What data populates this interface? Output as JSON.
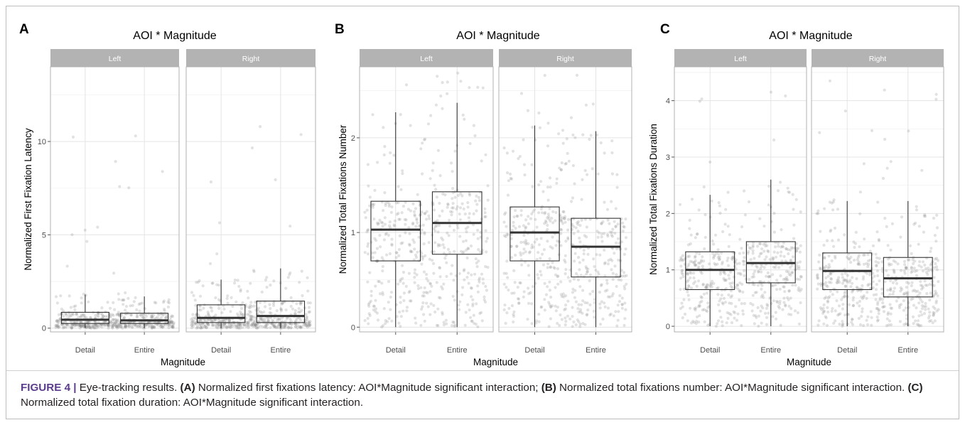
{
  "chart_data": [
    {
      "type": "box",
      "panel_letter": "A",
      "title": "AOI * Magnitude",
      "xlabel": "Magnitude",
      "ylabel": "Normalized First Fixation Latency",
      "ylim": [
        -0.2,
        14
      ],
      "yticks": [
        0,
        5,
        10
      ],
      "facets": [
        "Left",
        "Right"
      ],
      "categories": [
        "Detail",
        "Entire"
      ],
      "jitter_max": 13,
      "boxes": [
        {
          "facet": "Left",
          "category": "Detail",
          "whisker_low": 0.0,
          "q1": 0.25,
          "median": 0.45,
          "q3": 0.85,
          "whisker_high": 1.8
        },
        {
          "facet": "Left",
          "category": "Entire",
          "whisker_low": 0.0,
          "q1": 0.25,
          "median": 0.42,
          "q3": 0.8,
          "whisker_high": 1.7
        },
        {
          "facet": "Right",
          "category": "Detail",
          "whisker_low": 0.0,
          "q1": 0.3,
          "median": 0.55,
          "q3": 1.25,
          "whisker_high": 2.6
        },
        {
          "facet": "Right",
          "category": "Entire",
          "whisker_low": 0.0,
          "q1": 0.3,
          "median": 0.65,
          "q3": 1.45,
          "whisker_high": 3.2
        }
      ]
    },
    {
      "type": "box",
      "panel_letter": "B",
      "title": "AOI * Magnitude",
      "xlabel": "Magnitude",
      "ylabel": "Normalized Total Fixations Number",
      "ylim": [
        -0.05,
        2.75
      ],
      "yticks": [
        0,
        1,
        2
      ],
      "facets": [
        "Left",
        "Right"
      ],
      "categories": [
        "Detail",
        "Entire"
      ],
      "jitter_max": 2.7,
      "boxes": [
        {
          "facet": "Left",
          "category": "Detail",
          "whisker_low": 0.0,
          "q1": 0.7,
          "median": 1.03,
          "q3": 1.33,
          "whisker_high": 2.27
        },
        {
          "facet": "Left",
          "category": "Entire",
          "whisker_low": 0.0,
          "q1": 0.77,
          "median": 1.1,
          "q3": 1.43,
          "whisker_high": 2.37
        },
        {
          "facet": "Right",
          "category": "Detail",
          "whisker_low": 0.0,
          "q1": 0.7,
          "median": 1.0,
          "q3": 1.27,
          "whisker_high": 2.13
        },
        {
          "facet": "Right",
          "category": "Entire",
          "whisker_low": 0.0,
          "q1": 0.53,
          "median": 0.85,
          "q3": 1.15,
          "whisker_high": 2.07
        }
      ]
    },
    {
      "type": "box",
      "panel_letter": "C",
      "title": "AOI * Magnitude",
      "xlabel": "Magnitude",
      "ylabel": "Normalized Total Fixations Duration",
      "ylim": [
        -0.1,
        4.6
      ],
      "yticks": [
        0,
        1,
        2,
        3,
        4
      ],
      "facets": [
        "Left",
        "Right"
      ],
      "categories": [
        "Detail",
        "Entire"
      ],
      "jitter_max": 4.4,
      "boxes": [
        {
          "facet": "Left",
          "category": "Detail",
          "whisker_low": 0.0,
          "q1": 0.65,
          "median": 1.0,
          "q3": 1.32,
          "whisker_high": 2.33
        },
        {
          "facet": "Left",
          "category": "Entire",
          "whisker_low": 0.0,
          "q1": 0.77,
          "median": 1.12,
          "q3": 1.5,
          "whisker_high": 2.6
        },
        {
          "facet": "Right",
          "category": "Detail",
          "whisker_low": 0.0,
          "q1": 0.65,
          "median": 0.98,
          "q3": 1.3,
          "whisker_high": 2.22
        },
        {
          "facet": "Right",
          "category": "Entire",
          "whisker_low": 0.0,
          "q1": 0.52,
          "median": 0.85,
          "q3": 1.22,
          "whisker_high": 2.22
        }
      ]
    }
  ],
  "caption": {
    "figure_label": "FIGURE 4 |",
    "intro": " Eye-tracking results. ",
    "a_label": "(A)",
    "a_text": " Normalized first fixations latency: AOI*Magnitude significant interaction; ",
    "b_label": "(B)",
    "b_text": " Normalized total fixations number: AOI*Magnitude significant interaction. ",
    "c_label": "(C)",
    "c_text": " Normalized total fixation duration: AOI*Magnitude significant interaction."
  },
  "colors": {
    "strip": "#b3b3b3",
    "strip_text": "#ffffff",
    "points": "#7a7a7a",
    "box_line": "#333333",
    "grid_major": "#e4e4e4",
    "grid_minor": "#f2f2f2",
    "panel_border": "#b0b0b0"
  }
}
